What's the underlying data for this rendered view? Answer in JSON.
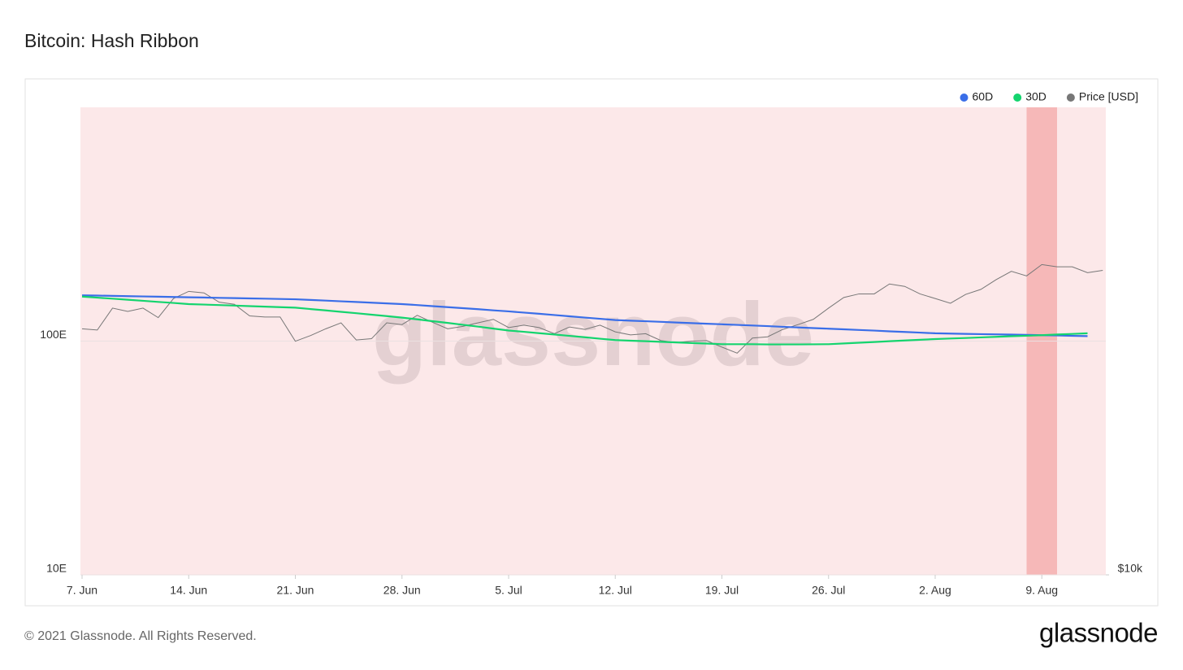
{
  "chart_data": {
    "type": "line",
    "title": "Bitcoin: Hash Ribbon",
    "watermark": "glassnode",
    "footer": "© 2021 Glassnode. All Rights Reserved.",
    "logo": "glassnode",
    "categories": [
      "7. Jun",
      null,
      null,
      null,
      null,
      null,
      null,
      "14. Jun",
      null,
      null,
      null,
      null,
      null,
      null,
      "21. Jun",
      null,
      null,
      null,
      null,
      null,
      null,
      "28. Jun",
      null,
      null,
      null,
      null,
      null,
      null,
      "5. Jul",
      null,
      null,
      null,
      null,
      null,
      null,
      "12. Jul",
      null,
      null,
      null,
      null,
      null,
      null,
      "19. Jul",
      null,
      null,
      null,
      null,
      null,
      null,
      "26. Jul",
      null,
      null,
      null,
      null,
      null,
      null,
      "2. Aug",
      null,
      null,
      null,
      null,
      null,
      null,
      "9. Aug",
      null,
      null,
      null,
      null
    ],
    "y_scale": "log",
    "ylim": [
      10,
      1000
    ],
    "yticks": [
      {
        "value": 10,
        "label": "10E"
      },
      {
        "value": 100,
        "label": "100E"
      }
    ],
    "y2_scale": "log",
    "y2lim": [
      10000,
      100000
    ],
    "y2ticks": [
      {
        "value": 10000,
        "label": "$10k"
      }
    ],
    "grid": true,
    "legend": "top-right",
    "shaded_ranges": [
      {
        "from": 0,
        "to": 67,
        "color": "#fce8e9"
      },
      {
        "from": 62,
        "to": 64,
        "color": "#f6b8b8"
      }
    ],
    "series": [
      {
        "name": "60D",
        "color": "#3a6ee8",
        "values": [
          157,
          156.6,
          156.1,
          155.7,
          155.3,
          154.9,
          154.4,
          154,
          153.6,
          153.1,
          152.7,
          152.3,
          151.9,
          151.4,
          151,
          150,
          149,
          148,
          147,
          146,
          145,
          144,
          142.6,
          141.1,
          139.7,
          138.3,
          136.9,
          135.4,
          134,
          132.4,
          130.9,
          129.3,
          127.7,
          126.1,
          124.6,
          123,
          122.3,
          121.6,
          120.9,
          120.1,
          119.4,
          118.7,
          118,
          117.3,
          116.6,
          115.9,
          115.1,
          114.4,
          113.7,
          113,
          112.3,
          111.6,
          110.9,
          110.1,
          109.4,
          108.7,
          108,
          107.7,
          107.4,
          107.1,
          106.9,
          106.6,
          106.3,
          106,
          105.7,
          105.3,
          105,
          null
        ]
      },
      {
        "name": "30D",
        "color": "#14d46e",
        "values": [
          155,
          153.4,
          151.9,
          150.3,
          148.7,
          147.1,
          145.6,
          144,
          143.3,
          142.6,
          141.9,
          141.1,
          140.4,
          139.7,
          139,
          137.1,
          135.3,
          133.4,
          131.6,
          129.7,
          127.9,
          126,
          123.9,
          121.7,
          119.6,
          117.4,
          115.3,
          113.1,
          111,
          109.6,
          108.1,
          106.7,
          105.3,
          103.9,
          102.4,
          101,
          100.4,
          99.9,
          99.3,
          98.7,
          98.1,
          97.6,
          97,
          97,
          97,
          96.8,
          96.8,
          96.8,
          96.9,
          97,
          97.7,
          98.4,
          99.1,
          99.9,
          100.6,
          101.3,
          102,
          102.6,
          103.1,
          103.7,
          104.3,
          104.9,
          105.4,
          106,
          106.7,
          107.3,
          108,
          null
        ]
      },
      {
        "name": "Price [USD]",
        "color": "#777777",
        "axis": "y2",
        "values": [
          33600,
          33400,
          37200,
          36600,
          37200,
          35500,
          39000,
          40400,
          40100,
          38300,
          37900,
          35800,
          35600,
          35600,
          31600,
          32500,
          33600,
          34600,
          31800,
          32000,
          34600,
          34300,
          35900,
          34700,
          33600,
          34000,
          34600,
          35200,
          33800,
          34200,
          33800,
          32800,
          33900,
          33500,
          34200,
          33100,
          32600,
          32800,
          31700,
          31400,
          31600,
          31700,
          30700,
          29800,
          32100,
          32300,
          33500,
          34300,
          35200,
          37200,
          39200,
          39900,
          39900,
          41900,
          41400,
          39900,
          39000,
          38100,
          39800,
          40800,
          42800,
          44600,
          43600,
          46100,
          45600,
          45600,
          44300,
          44800
        ]
      }
    ]
  }
}
